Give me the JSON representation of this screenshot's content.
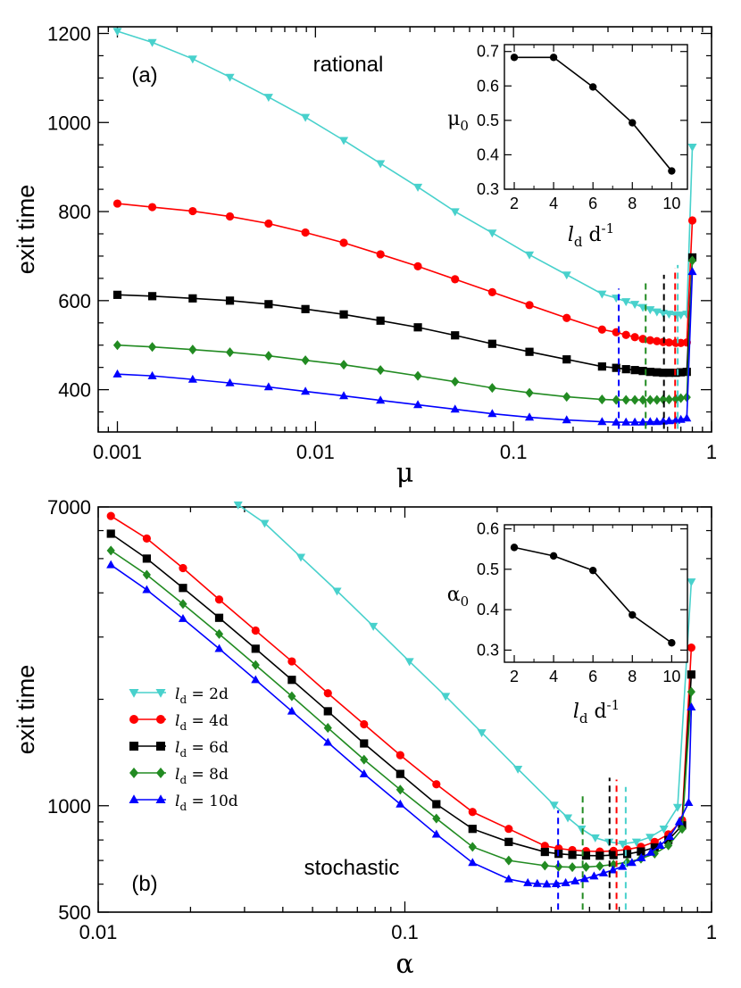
{
  "colors": {
    "ld2": "#48D1CC",
    "ld4": "#FF0000",
    "ld6": "#000000",
    "ld8": "#228B22",
    "ld10": "#0000FF"
  },
  "chart_data": [
    {
      "type": "line",
      "panel": "(a)",
      "annotation": "rational",
      "xlabel": "μ",
      "ylabel": "exit time",
      "xscale": "log",
      "xlim": [
        0.0008,
        1.0
      ],
      "ylim": [
        305,
        1215
      ],
      "xticks": [
        "0.001",
        "0.01",
        "0.1",
        "1"
      ],
      "yticks": [
        "400",
        "600",
        "800",
        "1000",
        "1200"
      ],
      "series": [
        {
          "key": "ld2",
          "marker": "triangle-down",
          "x": [
            0.001,
            0.0015,
            0.0024,
            0.0037,
            0.0058,
            0.0089,
            0.0139,
            0.0213,
            0.0329,
            0.0507,
            0.0781,
            0.1204,
            0.1856,
            0.28,
            0.33,
            0.37,
            0.41,
            0.45,
            0.49,
            0.53,
            0.57,
            0.61,
            0.66,
            0.7,
            0.75,
            0.8
          ],
          "y": [
            1205,
            1180,
            1143,
            1102,
            1057,
            1012,
            960,
            908,
            855,
            800,
            752,
            703,
            658,
            615,
            606,
            598,
            592,
            585,
            580,
            575,
            572,
            570,
            568,
            568,
            570,
            945
          ]
        },
        {
          "key": "ld4",
          "marker": "circle",
          "x": [
            0.001,
            0.0015,
            0.0024,
            0.0037,
            0.0058,
            0.0089,
            0.0139,
            0.0213,
            0.0329,
            0.0507,
            0.0781,
            0.1204,
            0.1856,
            0.28,
            0.33,
            0.37,
            0.41,
            0.45,
            0.49,
            0.53,
            0.57,
            0.61,
            0.66,
            0.7,
            0.75,
            0.8
          ],
          "y": [
            818,
            810,
            801,
            789,
            773,
            753,
            730,
            704,
            677,
            648,
            619,
            590,
            561,
            535,
            529,
            523,
            518,
            514,
            511,
            509,
            507,
            506,
            505,
            505,
            506,
            780
          ]
        },
        {
          "key": "ld6",
          "marker": "square",
          "x": [
            0.001,
            0.0015,
            0.0024,
            0.0037,
            0.0058,
            0.0089,
            0.0139,
            0.0213,
            0.0329,
            0.0507,
            0.0781,
            0.1204,
            0.1856,
            0.28,
            0.33,
            0.37,
            0.41,
            0.45,
            0.49,
            0.53,
            0.57,
            0.61,
            0.66,
            0.7,
            0.75,
            0.8
          ],
          "y": [
            613,
            610,
            605,
            600,
            592,
            581,
            569,
            555,
            540,
            522,
            503,
            485,
            468,
            452,
            449,
            446,
            444,
            442,
            440,
            439,
            438,
            438,
            438,
            439,
            440,
            697
          ]
        },
        {
          "key": "ld8",
          "marker": "diamond",
          "x": [
            0.001,
            0.0015,
            0.0024,
            0.0037,
            0.0058,
            0.0089,
            0.0139,
            0.0213,
            0.0329,
            0.0507,
            0.0781,
            0.1204,
            0.1856,
            0.28,
            0.33,
            0.37,
            0.41,
            0.45,
            0.49,
            0.53,
            0.57,
            0.61,
            0.66,
            0.7,
            0.75,
            0.8
          ],
          "y": [
            500,
            496,
            490,
            484,
            476,
            466,
            456,
            444,
            431,
            418,
            404,
            393,
            384,
            378,
            377,
            377,
            377,
            377,
            377,
            377,
            378,
            378,
            379,
            381,
            383,
            690
          ]
        },
        {
          "key": "ld10",
          "marker": "triangle-up",
          "x": [
            0.001,
            0.0015,
            0.0024,
            0.0037,
            0.0058,
            0.0089,
            0.0139,
            0.0213,
            0.0329,
            0.0507,
            0.0781,
            0.1204,
            0.1856,
            0.28,
            0.33,
            0.37,
            0.41,
            0.45,
            0.49,
            0.53,
            0.57,
            0.61,
            0.66,
            0.7,
            0.75,
            0.8
          ],
          "y": [
            435,
            431,
            423,
            415,
            406,
            396,
            386,
            376,
            366,
            356,
            346,
            338,
            332,
            328,
            327,
            327,
            327,
            327,
            328,
            328,
            329,
            330,
            331,
            333,
            336,
            665
          ]
        }
      ],
      "vlines": [
        {
          "key": "ld10",
          "x": 0.34,
          "y": [
            312,
            627
          ]
        },
        {
          "key": "ld8",
          "x": 0.465,
          "y": [
            312,
            643
          ]
        },
        {
          "key": "ld6",
          "x": 0.575,
          "y": [
            312,
            658
          ]
        },
        {
          "key": "ld4",
          "x": 0.655,
          "y": [
            312,
            673
          ]
        },
        {
          "key": "ld2",
          "x": 0.675,
          "y": [
            312,
            680
          ]
        }
      ],
      "inset": {
        "type": "line",
        "xlabel_l": "l",
        "xlabel_sub": "d",
        "xlabel_rest": " d",
        "xlabel_sup": "-1",
        "ylabel": "μ",
        "ylabel_sub": "0",
        "xlim": [
          1.5,
          10.8
        ],
        "ylim": [
          0.3,
          0.72
        ],
        "xticks": [
          "2",
          "4",
          "6",
          "8",
          "10"
        ],
        "yticks": [
          "0.3",
          "0.4",
          "0.5",
          "0.6",
          "0.7"
        ],
        "x": [
          2,
          4,
          6,
          8,
          10
        ],
        "y": [
          0.683,
          0.683,
          0.597,
          0.493,
          0.353
        ]
      }
    },
    {
      "type": "line",
      "panel": "(b)",
      "annotation": "stochastic",
      "xlabel": "α",
      "ylabel": "exit time",
      "xscale": "log",
      "yscale": "log",
      "xlim": [
        0.01,
        1.0
      ],
      "ylim": [
        500,
        7000
      ],
      "xticks": [
        "0.01",
        "0.1",
        "1"
      ],
      "yticks": [
        "500",
        "1000",
        "7000"
      ],
      "series": [
        {
          "key": "ld2",
          "marker": "triangle-down",
          "x": [
            0.0286,
            0.0349,
            0.0458,
            0.0601,
            0.0789,
            0.1035,
            0.1358,
            0.1781,
            0.2337,
            0.3066,
            0.3399,
            0.3768,
            0.4177,
            0.463,
            0.5133,
            0.569,
            0.6307,
            0.6992,
            0.7751,
            0.8592
          ],
          "y": [
            7100,
            6300,
            5050,
            4050,
            3220,
            2560,
            2040,
            1610,
            1270,
            1005,
            925,
            860,
            812,
            790,
            780,
            790,
            815,
            860,
            990,
            4300
          ]
        },
        {
          "key": "ld4",
          "marker": "circle",
          "x": [
            0.011,
            0.0144,
            0.0189,
            0.0248,
            0.0326,
            0.0428,
            0.0561,
            0.0736,
            0.0966,
            0.1267,
            0.1662,
            0.2181,
            0.2861,
            0.3172,
            0.3516,
            0.3898,
            0.4321,
            0.4789,
            0.5309,
            0.5886,
            0.6525,
            0.7233,
            0.8018,
            0.8592
          ],
          "y": [
            6600,
            5700,
            4700,
            3830,
            3130,
            2560,
            2080,
            1700,
            1390,
            1150,
            960,
            860,
            770,
            757,
            749,
            744,
            742,
            745,
            752,
            765,
            790,
            830,
            910,
            2800
          ]
        },
        {
          "key": "ld6",
          "marker": "square",
          "x": [
            0.011,
            0.0144,
            0.0189,
            0.0248,
            0.0326,
            0.0428,
            0.0561,
            0.0736,
            0.0966,
            0.1267,
            0.1662,
            0.2181,
            0.2861,
            0.3172,
            0.3516,
            0.3898,
            0.4321,
            0.4789,
            0.5309,
            0.5886,
            0.6525,
            0.7233,
            0.8018,
            0.8592
          ],
          "y": [
            5880,
            5000,
            4130,
            3400,
            2780,
            2270,
            1850,
            1500,
            1230,
            1010,
            860,
            790,
            740,
            731,
            726,
            723,
            722,
            725,
            730,
            742,
            762,
            800,
            880,
            2350
          ]
        },
        {
          "key": "ld8",
          "marker": "diamond",
          "x": [
            0.011,
            0.0144,
            0.0189,
            0.0248,
            0.0326,
            0.0428,
            0.0561,
            0.0736,
            0.0966,
            0.1267,
            0.1662,
            0.2181,
            0.2861,
            0.3172,
            0.3516,
            0.3898,
            0.4321,
            0.4789,
            0.5309,
            0.5886,
            0.6525,
            0.7233,
            0.8018,
            0.8592
          ],
          "y": [
            5270,
            4500,
            3720,
            3060,
            2500,
            2040,
            1660,
            1350,
            1110,
            920,
            765,
            700,
            677,
            672,
            670,
            671,
            675,
            682,
            692,
            708,
            732,
            772,
            860,
            2100
          ]
        },
        {
          "key": "ld10",
          "marker": "triangle-up",
          "x": [
            0.011,
            0.0144,
            0.0189,
            0.0248,
            0.0326,
            0.0428,
            0.0561,
            0.0736,
            0.0966,
            0.1267,
            0.1662,
            0.2181,
            0.2517,
            0.2703,
            0.2902,
            0.3115,
            0.3345,
            0.3591,
            0.3855,
            0.4139,
            0.4444,
            0.4771,
            0.5123,
            0.55,
            0.5905,
            0.6339,
            0.6806,
            0.7307,
            0.7845,
            0.8422,
            0.8592
          ],
          "y": [
            4800,
            4080,
            3380,
            2780,
            2270,
            1850,
            1510,
            1230,
            1010,
            830,
            690,
            620,
            605,
            602,
            600,
            601,
            605,
            612,
            621,
            632,
            645,
            658,
            673,
            690,
            712,
            738,
            772,
            818,
            900,
            1020,
            1900
          ]
        }
      ],
      "vlines": [
        {
          "key": "ld10",
          "x": 0.316,
          "y": [
            508,
            970
          ]
        },
        {
          "key": "ld8",
          "x": 0.38,
          "y": [
            508,
            1090
          ]
        },
        {
          "key": "ld6",
          "x": 0.465,
          "y": [
            508,
            1200
          ]
        },
        {
          "key": "ld4",
          "x": 0.49,
          "y": [
            508,
            1185
          ]
        },
        {
          "key": "ld2",
          "x": 0.525,
          "y": [
            508,
            1130
          ]
        }
      ],
      "legend": {
        "position": "middle-left",
        "entries": [
          {
            "key": "ld2",
            "l": "l",
            "sub": "d",
            "text": " = 2d"
          },
          {
            "key": "ld4",
            "l": "l",
            "sub": "d",
            "text": " = 4d"
          },
          {
            "key": "ld6",
            "l": "l",
            "sub": "d",
            "text": " = 6d"
          },
          {
            "key": "ld8",
            "l": "l",
            "sub": "d",
            "text": " = 8d"
          },
          {
            "key": "ld10",
            "l": "l",
            "sub": "d",
            "text": " = 10d"
          }
        ]
      },
      "inset": {
        "type": "line",
        "xlabel_l": "l",
        "xlabel_sub": "d",
        "xlabel_rest": " d",
        "xlabel_sup": "-1",
        "ylabel": "α",
        "ylabel_sub": "0",
        "xlim": [
          1.5,
          10.8
        ],
        "ylim": [
          0.27,
          0.61
        ],
        "xticks": [
          "2",
          "4",
          "6",
          "8",
          "10"
        ],
        "yticks": [
          "0.3",
          "0.4",
          "0.5",
          "0.6"
        ],
        "x": [
          2,
          4,
          6,
          8,
          10
        ],
        "y": [
          0.554,
          0.533,
          0.497,
          0.387,
          0.318
        ]
      }
    }
  ]
}
